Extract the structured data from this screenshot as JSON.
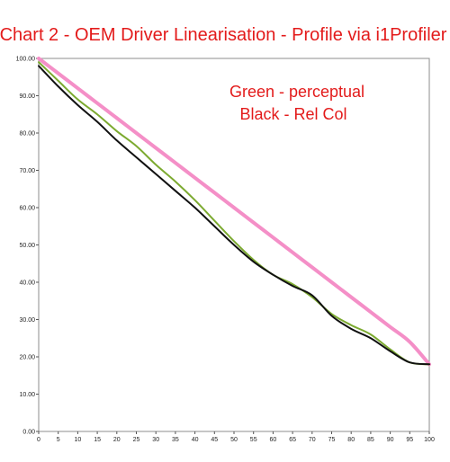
{
  "chart_data": {
    "type": "line",
    "title": "Chart 2 - OEM Driver Linearisation - Profile via i1Profiler",
    "annotations": [
      "Green - perceptual",
      "Black - Rel Col"
    ],
    "xlim": [
      0,
      100
    ],
    "ylim": [
      0,
      100
    ],
    "x_ticks": [
      0,
      5,
      10,
      15,
      20,
      25,
      30,
      35,
      40,
      45,
      50,
      55,
      60,
      65,
      70,
      75,
      80,
      85,
      90,
      95,
      100
    ],
    "y_ticks": [
      "0.00",
      "10.00",
      "20.00",
      "30.00",
      "40.00",
      "50.00",
      "60.00",
      "70.00",
      "80.00",
      "90.00",
      "100.00"
    ],
    "grid": false,
    "legend": "none",
    "x": [
      0,
      5,
      10,
      15,
      20,
      25,
      30,
      35,
      40,
      45,
      50,
      55,
      60,
      65,
      70,
      75,
      80,
      85,
      90,
      95,
      100
    ],
    "series": [
      {
        "color": "#f48fc7",
        "values": [
          100,
          96,
          92,
          88,
          84,
          80,
          76,
          72,
          68,
          64,
          60,
          56,
          52,
          48,
          44,
          40,
          36,
          32,
          28,
          24,
          18
        ]
      },
      {
        "color": "#7caa30",
        "values": [
          99,
          94,
          89,
          85,
          80.5,
          76.5,
          71.5,
          67,
          62,
          56.5,
          51,
          46,
          42,
          39.5,
          36,
          31.5,
          28.5,
          26,
          22,
          18.5,
          18
        ]
      },
      {
        "color": "#111111",
        "values": [
          98,
          92.5,
          87.5,
          83,
          78,
          73.5,
          69,
          64.5,
          60,
          55,
          50,
          45.5,
          42,
          39,
          36.5,
          31,
          27.5,
          25,
          21.5,
          18.5,
          18
        ]
      }
    ]
  }
}
